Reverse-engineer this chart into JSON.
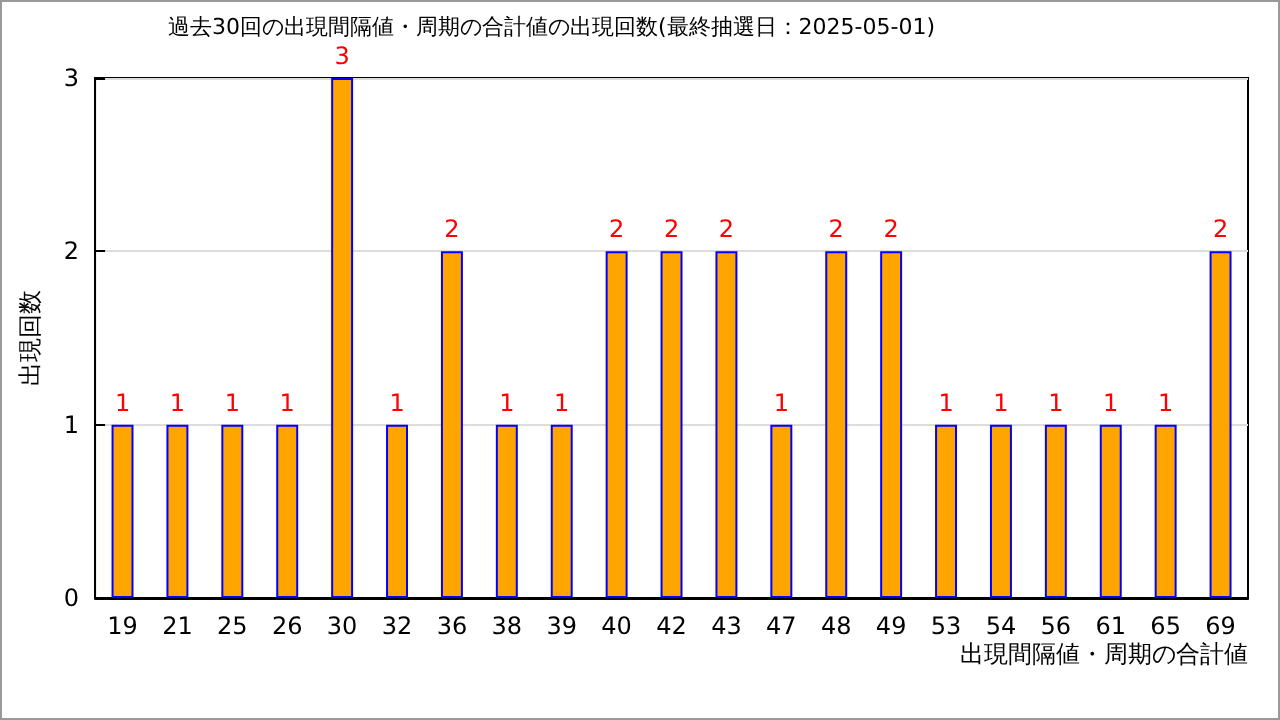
{
  "chart_data": {
    "type": "bar",
    "title": "過去30回の出現間隔値・周期の合計値の出現回数(最終抽選日：2025-05-01)",
    "xlabel": "出現間隔値・周期の合計値",
    "ylabel": "出現回数",
    "categories": [
      "19",
      "21",
      "25",
      "26",
      "30",
      "32",
      "36",
      "38",
      "39",
      "40",
      "42",
      "43",
      "47",
      "48",
      "49",
      "53",
      "54",
      "56",
      "61",
      "65",
      "69"
    ],
    "values": [
      1,
      1,
      1,
      1,
      3,
      1,
      2,
      1,
      1,
      2,
      2,
      2,
      1,
      2,
      2,
      1,
      1,
      1,
      1,
      1,
      2
    ],
    "color": "#ffa500",
    "ylim": [
      0,
      3
    ],
    "yticks": [
      0,
      1,
      2,
      3
    ],
    "grid": "y",
    "data_labels": true
  }
}
